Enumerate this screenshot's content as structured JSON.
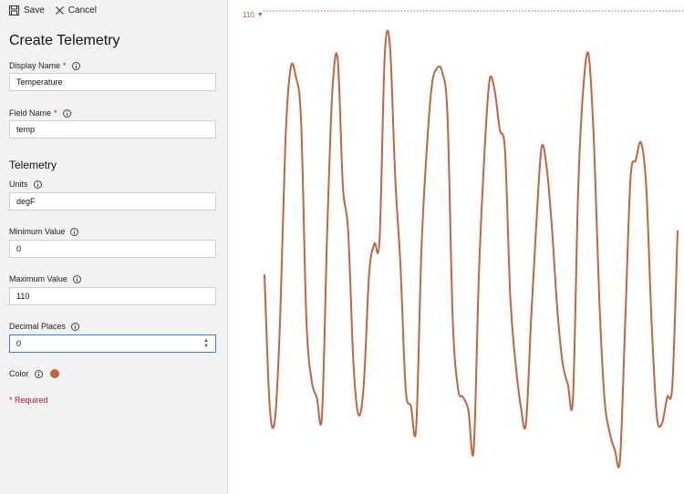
{
  "toolbar": {
    "save_label": "Save",
    "cancel_label": "Cancel"
  },
  "form": {
    "title": "Create Telemetry",
    "display_name": {
      "label": "Display Name",
      "required_mark": "*",
      "value": "Temperature"
    },
    "field_name": {
      "label": "Field Name",
      "required_mark": "*",
      "value": "temp"
    },
    "section_title": "Telemetry",
    "units": {
      "label": "Units",
      "value": "degF"
    },
    "minimum_value": {
      "label": "Minimum Value",
      "value": "0"
    },
    "maximum_value": {
      "label": "Maximum Value",
      "value": "110"
    },
    "decimal_places": {
      "label": "Decimal Places",
      "value": "0"
    },
    "color": {
      "label": "Color",
      "value": "#c4643f"
    },
    "required_note": "* Required"
  },
  "plot": {
    "limit_label": "110",
    "line_color": "#c4643f",
    "limit_color": "#c4643f"
  },
  "chart_data": {
    "type": "line",
    "ylim": [
      0,
      110
    ],
    "reference_line": 110,
    "series": [
      {
        "values": [
          50,
          20,
          17,
          40,
          80,
          97,
          95,
          85,
          40,
          26,
          22,
          18,
          60,
          92,
          99,
          70,
          60,
          30,
          18,
          25,
          50,
          57,
          58,
          100,
          102,
          72,
          52,
          24,
          20,
          15,
          55,
          78,
          93,
          97,
          96,
          86,
          40,
          24,
          22,
          19,
          10,
          50,
          76,
          94,
          92,
          83,
          78,
          45,
          30,
          20,
          16,
          40,
          62,
          79,
          74,
          60,
          42,
          30,
          25,
          22,
          70,
          93,
          100,
          80,
          45,
          22,
          14,
          10,
          8,
          40,
          72,
          76,
          80,
          70,
          40,
          18,
          16,
          22,
          25,
          60
        ]
      }
    ]
  }
}
